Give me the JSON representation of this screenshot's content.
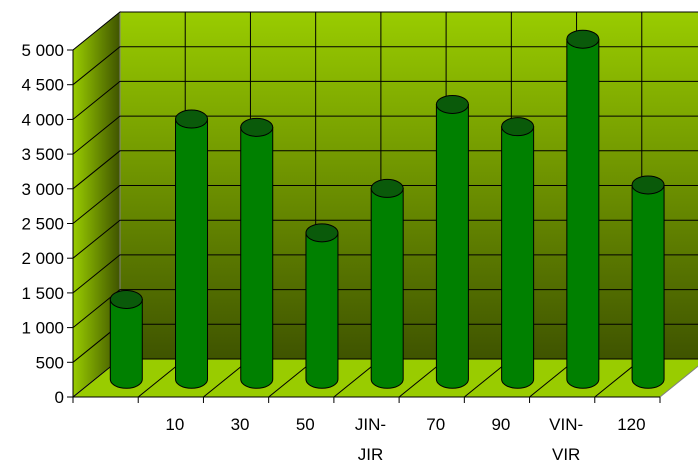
{
  "chart_data": {
    "type": "bar",
    "style": "3d-cylinder",
    "categories": [
      "",
      "10",
      "30",
      "50",
      "JIN-JIR",
      "70",
      "90",
      "VIN-VIR",
      "120"
    ],
    "series": [
      {
        "values": [
          1150,
          3750,
          3630,
          2110,
          2750,
          3960,
          3640,
          4900,
          2800
        ]
      }
    ],
    "ylim": [
      0,
      5000
    ],
    "yticks": [
      "0",
      "500",
      "1 000",
      "1 500",
      "2 000",
      "2 500",
      "3 000",
      "3 500",
      "4 000",
      "4 500",
      "5 000"
    ],
    "grid": true,
    "legend": "none",
    "colors": {
      "bar_body": "#008000",
      "bar_top": "#0a5a0a",
      "wall_top": "#99cc00",
      "wall_bottom": "#3f5400",
      "floor": "#99cc00",
      "gridline": "#000000"
    }
  }
}
